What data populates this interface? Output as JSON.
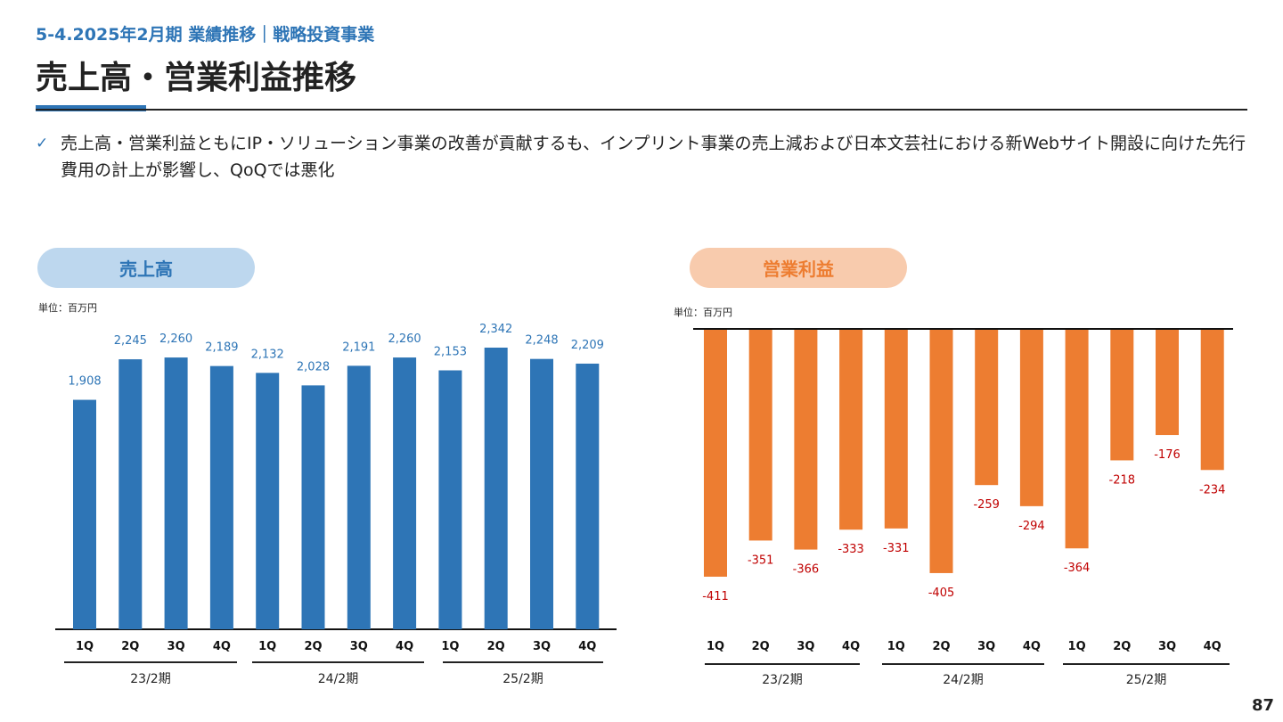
{
  "header": {
    "subtitle": "5-4.2025年2月期 業績推移｜戦略投資事業",
    "title": "売上高・営業利益推移"
  },
  "bullet": {
    "icon": "checkmark-icon",
    "text": "売上高・営業利益ともにIP・ソリューション事業の改善が貢献するも、インプリント事業の売上減および日本文芸社における新Webサイト開設に向けた先行費用の計上が影響し、QoQでは悪化"
  },
  "page_number": "87",
  "colors": {
    "accent_blue": "#2e75b6",
    "sales_bar": "#2e75b6",
    "profit_bar": "#ed7d31",
    "profit_label": "#c00000",
    "sales_label": "#2e75b6"
  },
  "chart_data": [
    {
      "type": "bar",
      "title": "売上高",
      "unit_label": "単位：百万円",
      "categories": [
        "1Q",
        "2Q",
        "3Q",
        "4Q",
        "1Q",
        "2Q",
        "3Q",
        "4Q",
        "1Q",
        "2Q",
        "3Q",
        "4Q"
      ],
      "groups": [
        {
          "label": "23/2期",
          "span": [
            0,
            3
          ]
        },
        {
          "label": "24/2期",
          "span": [
            4,
            7
          ]
        },
        {
          "label": "25/2期",
          "span": [
            8,
            11
          ]
        }
      ],
      "values": [
        1908,
        2245,
        2260,
        2189,
        2132,
        2028,
        2191,
        2260,
        2153,
        2342,
        2248,
        2209
      ],
      "labels": [
        "1,908",
        "2,245",
        "2,260",
        "2,189",
        "2,132",
        "2,028",
        "2,191",
        "2,260",
        "2,153",
        "2,342",
        "2,248",
        "2,209"
      ],
      "ylim": [
        0,
        2342
      ],
      "grid": false,
      "xlabel": "",
      "ylabel": ""
    },
    {
      "type": "bar",
      "title": "営業利益",
      "unit_label": "単位：百万円",
      "categories": [
        "1Q",
        "2Q",
        "3Q",
        "4Q",
        "1Q",
        "2Q",
        "3Q",
        "4Q",
        "1Q",
        "2Q",
        "3Q",
        "4Q"
      ],
      "groups": [
        {
          "label": "23/2期",
          "span": [
            0,
            3
          ]
        },
        {
          "label": "24/2期",
          "span": [
            4,
            7
          ]
        },
        {
          "label": "25/2期",
          "span": [
            8,
            11
          ]
        }
      ],
      "values": [
        -411,
        -351,
        -366,
        -333,
        -331,
        -405,
        -259,
        -294,
        -364,
        -218,
        -176,
        -234
      ],
      "labels": [
        "-411",
        "-351",
        "-366",
        "-333",
        "-331",
        "-405",
        "-259",
        "-294",
        "-364",
        "-218",
        "-176",
        "-234"
      ],
      "ylim": [
        -411,
        0
      ],
      "grid": false,
      "xlabel": "",
      "ylabel": ""
    }
  ]
}
